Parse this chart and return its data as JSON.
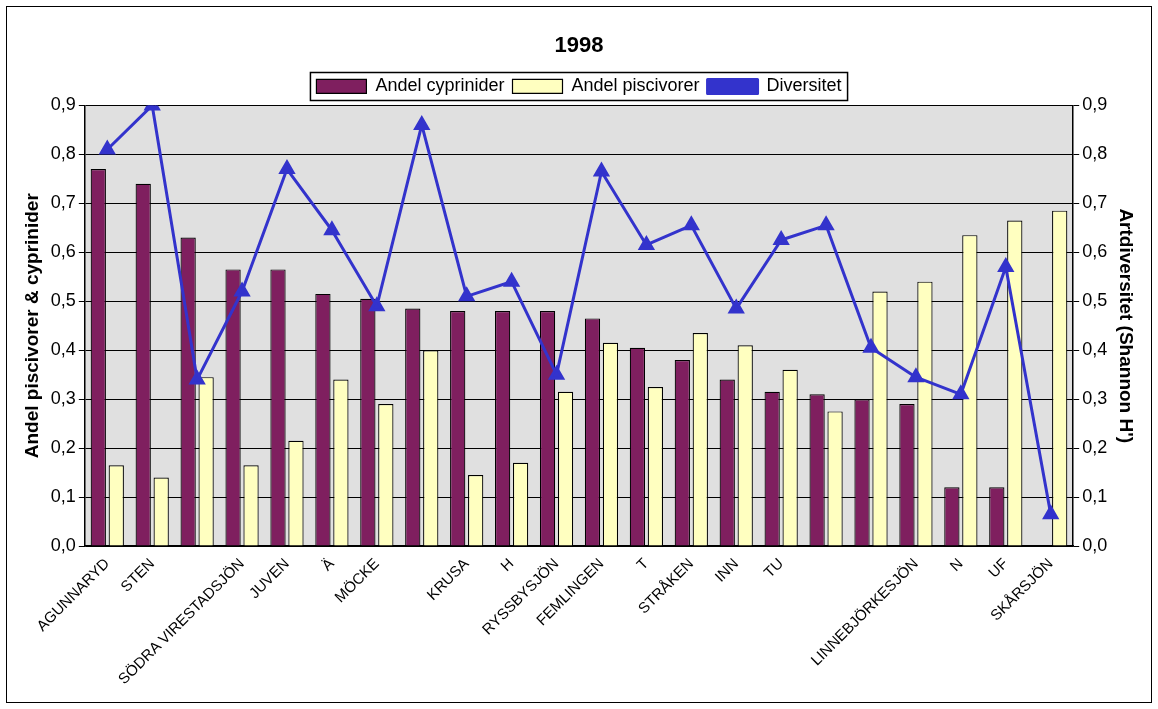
{
  "chart_data": {
    "type": "bar",
    "title": "1998",
    "ylabel": "Andel piscivorer & cyprinider",
    "y2label": "Artdiversitet (Shannon H')",
    "categories": [
      "AGUNNARYD",
      "STEN",
      null,
      "SÖDRA VIRESTADSJÖN",
      "JUVEN",
      "Ä",
      "MÖCKE",
      null,
      "KRUSA",
      "H",
      "RYSSBYSJÖN",
      "FEMLINGEN",
      "T",
      "STRÅKEN",
      "INN",
      "TU",
      null,
      null,
      "LINNEBJÖRKESJÖN",
      "N",
      "UF",
      "SKÅRSJÖN"
    ],
    "series": [
      {
        "name": "Andel cyprinider",
        "color": "#7f1f5f",
        "values": [
          0.77,
          0.74,
          0.63,
          0.565,
          0.565,
          0.515,
          0.505,
          0.485,
          0.48,
          0.48,
          0.48,
          0.465,
          0.405,
          0.38,
          0.34,
          0.315,
          0.31,
          0.3,
          0.29,
          0.12,
          0.12,
          null
        ]
      },
      {
        "name": "Andel piscivorer",
        "color": "#ffffc0",
        "values": [
          0.165,
          0.14,
          0.345,
          0.165,
          0.215,
          0.34,
          0.29,
          0.4,
          0.145,
          0.17,
          0.315,
          0.415,
          0.325,
          0.435,
          0.41,
          0.36,
          0.275,
          0.52,
          0.54,
          0.635,
          0.665,
          0.685
        ]
      },
      {
        "name": "Diversitet",
        "type": "line",
        "axis": "y2",
        "color": "#3333cc",
        "marker": "triangle",
        "values": [
          0.81,
          0.9,
          0.34,
          0.52,
          0.77,
          0.645,
          0.49,
          0.86,
          0.51,
          0.54,
          0.35,
          0.765,
          0.615,
          0.655,
          0.485,
          0.625,
          0.655,
          0.405,
          0.345,
          0.31,
          0.57,
          0.065
        ]
      }
    ],
    "ylim": [
      0,
      0.9
    ],
    "yticks": [
      {
        "value": 0,
        "label": "0,0"
      },
      {
        "value": 0.1,
        "label": "0,1"
      },
      {
        "value": 0.2,
        "label": "0,2"
      },
      {
        "value": 0.3,
        "label": "0,3"
      },
      {
        "value": 0.4,
        "label": "0,4"
      },
      {
        "value": 0.5,
        "label": "0,5"
      },
      {
        "value": 0.6,
        "label": "0,6"
      },
      {
        "value": 0.7,
        "label": "0,7"
      },
      {
        "value": 0.8,
        "label": "0,8"
      },
      {
        "value": 0.9,
        "label": "0,9"
      }
    ],
    "y2lim": [
      0,
      0.9
    ],
    "y2ticks": [
      {
        "value": 0,
        "label": "0,0"
      },
      {
        "value": 0.1,
        "label": "0,1"
      },
      {
        "value": 0.2,
        "label": "0,2"
      },
      {
        "value": 0.3,
        "label": "0,3"
      },
      {
        "value": 0.4,
        "label": "0,4"
      },
      {
        "value": 0.5,
        "label": "0,5"
      },
      {
        "value": 0.6,
        "label": "0,6"
      },
      {
        "value": 0.7,
        "label": "0,7"
      },
      {
        "value": 0.8,
        "label": "0,8"
      },
      {
        "value": 0.9,
        "label": "0,9"
      }
    ],
    "grid": "y",
    "legend": "top"
  }
}
